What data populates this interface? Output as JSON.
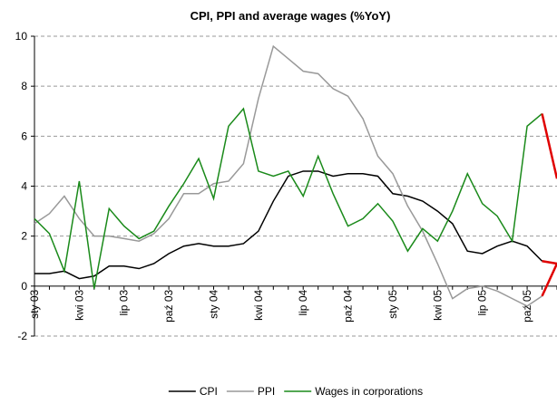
{
  "chart_data": {
    "type": "line",
    "title": "CPI, PPI and average wages (%YoY)",
    "categories": [
      "sty 03",
      null,
      null,
      "kwi 03",
      null,
      null,
      "lip 03",
      null,
      null,
      "paź 03",
      null,
      null,
      "sty 04",
      null,
      null,
      "kwi 04",
      null,
      null,
      "lip 04",
      null,
      null,
      "paź 04",
      null,
      null,
      "sty 05",
      null,
      null,
      "kwi 05",
      null,
      null,
      "lip 05",
      null,
      null,
      "paź 05",
      null,
      null
    ],
    "series": [
      {
        "name": "CPI",
        "color": "#000000",
        "values": [
          0.5,
          0.5,
          0.6,
          0.3,
          0.4,
          0.8,
          0.8,
          0.7,
          0.9,
          1.3,
          1.6,
          1.7,
          1.6,
          1.6,
          1.7,
          2.2,
          3.4,
          4.4,
          4.6,
          4.6,
          4.4,
          4.5,
          4.5,
          4.4,
          3.7,
          3.6,
          3.4,
          3.0,
          2.5,
          1.4,
          1.3,
          1.6,
          1.8,
          1.6,
          1.0,
          0.9
        ]
      },
      {
        "name": "PPI",
        "color": "#999999",
        "values": [
          2.5,
          2.9,
          3.6,
          2.7,
          2.0,
          2.0,
          1.9,
          1.8,
          2.1,
          2.7,
          3.7,
          3.7,
          4.1,
          4.2,
          4.9,
          7.5,
          9.6,
          9.1,
          8.6,
          8.5,
          7.9,
          7.6,
          6.7,
          5.2,
          4.5,
          3.2,
          2.2,
          0.9,
          -0.5,
          -0.1,
          0.0,
          -0.2,
          -0.5,
          -0.8,
          -0.4,
          0.9
        ]
      },
      {
        "name": "Wages in corporations",
        "color": "#1a8a1a",
        "values": [
          2.7,
          2.1,
          0.6,
          4.2,
          -0.1,
          3.1,
          2.4,
          1.9,
          2.2,
          3.2,
          4.1,
          5.1,
          3.5,
          6.4,
          7.1,
          4.6,
          4.4,
          4.6,
          3.6,
          5.2,
          3.7,
          2.4,
          2.7,
          3.3,
          2.6,
          1.4,
          2.3,
          1.8,
          3.0,
          4.5,
          3.3,
          2.8,
          1.8,
          6.4,
          6.9,
          4.3
        ]
      }
    ],
    "highlight_last_segment_color": "#e00000",
    "ylim": [
      -2,
      10
    ],
    "yticks": [
      -2,
      0,
      2,
      4,
      6,
      8,
      10
    ],
    "grid": true,
    "legend": "bottom"
  }
}
